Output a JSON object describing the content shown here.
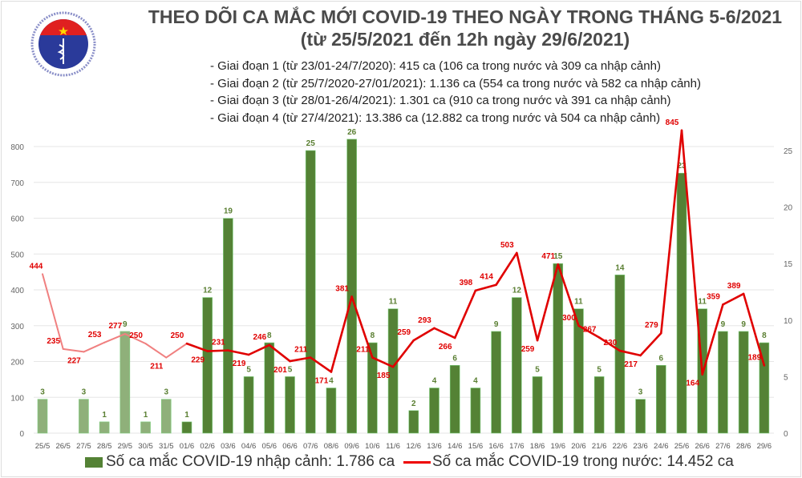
{
  "logo": {
    "text_top": "BỘ Y TẾ",
    "text_bottom": "MINISTRY OF HEALTH"
  },
  "title_line1": "THEO DÕI CA MẮC MỚI COVID-19 THEO NGÀY TRONG THÁNG 5-6/2021",
  "title_line2": "(từ 25/5/2021 đến 12h ngày 29/6/2021)",
  "notes": [
    "- Giai đoạn 1 (từ 23/01-24/7/2020): 415 ca (106 ca trong nước và 309 ca nhập cảnh)",
    "- Giai đoạn 2 (từ 25/7/2020-27/01/2021): 1.136 ca (554 ca trong nước và 582 ca nhập cảnh)",
    "- Giai đoạn 3 (từ 28/01-26/4/2021): 1.301 ca (910 ca trong nước và 391 ca nhập cảnh)",
    "- Giai đoạn 4 (từ 27/4/2021): 13.386 ca (12.882 ca trong nước và 504 ca nhập cảnh)"
  ],
  "chart_data": {
    "type": "bar+line",
    "categories": [
      "25/5",
      "26/5",
      "27/5",
      "28/5",
      "29/5",
      "30/5",
      "31/5",
      "01/6",
      "02/6",
      "03/6",
      "04/6",
      "05/6",
      "06/6",
      "07/6",
      "08/6",
      "09/6",
      "10/6",
      "11/6",
      "12/6",
      "13/6",
      "14/6",
      "15/6",
      "16/6",
      "17/6",
      "18/6",
      "19/6",
      "20/6",
      "21/6",
      "22/6",
      "23/6",
      "24/6",
      "25/6",
      "26/6",
      "27/6",
      "28/6",
      "29/6"
    ],
    "series": [
      {
        "name": "Số ca mắc COVID-19 nhập cảnh: 1.786 ca",
        "type": "bar",
        "axis": "right",
        "color": "#548235",
        "values": [
          3,
          0,
          3,
          1,
          9,
          1,
          3,
          1,
          12,
          19,
          5,
          8,
          5,
          25,
          4,
          26,
          8,
          11,
          2,
          4,
          6,
          4,
          9,
          12,
          5,
          15,
          11,
          5,
          14,
          3,
          6,
          23,
          11,
          9,
          9,
          8
        ]
      },
      {
        "name": "Số ca mắc COVID-19 trong nước: 14.452 ca",
        "type": "line",
        "axis": "left",
        "color": "#e00000",
        "values": [
          444,
          235,
          227,
          253,
          277,
          250,
          211,
          250,
          229,
          231,
          219,
          246,
          201,
          211,
          171,
          381,
          211,
          185,
          259,
          293,
          266,
          398,
          414,
          503,
          259,
          471,
          300,
          267,
          230,
          217,
          279,
          845,
          164,
          359,
          389,
          189
        ]
      }
    ],
    "left_axis": {
      "ylim": [
        0,
        800
      ],
      "ticks": [
        0,
        100,
        200,
        300,
        400,
        500,
        600,
        700,
        800
      ]
    },
    "right_axis": {
      "ylim": [
        0,
        25
      ],
      "ticks": [
        0,
        5,
        10,
        15,
        20,
        25
      ]
    },
    "grid": true,
    "legend": "bottom",
    "faded_colors": {
      "bar": "#8fb07a",
      "line": "#f08080"
    }
  }
}
